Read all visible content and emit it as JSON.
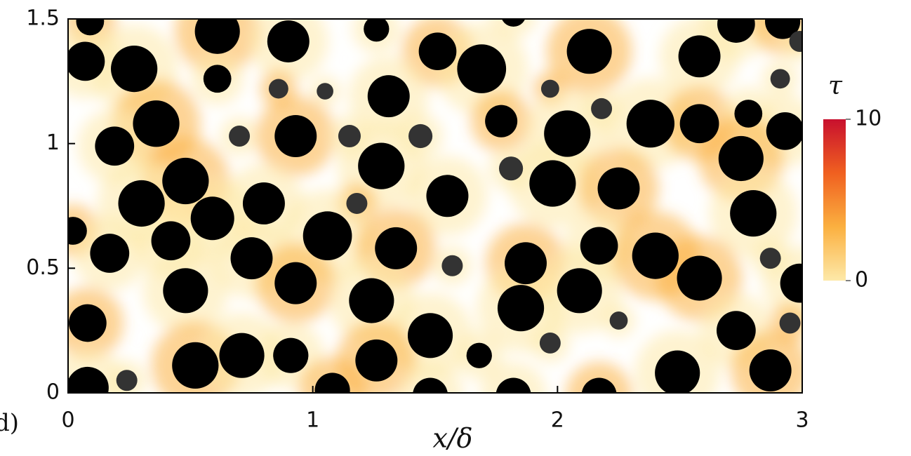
{
  "chart_data": {
    "type": "scatter",
    "panel_label": "d)",
    "x_label": "x/δ",
    "xlim": [
      0,
      3
    ],
    "ylim": [
      0,
      1.5
    ],
    "xticks": [
      0,
      1,
      2,
      3
    ],
    "yticks": [
      0,
      0.5,
      1,
      1.5
    ],
    "color": "#000000",
    "colorbar": {
      "label": "τ",
      "lim": [
        0,
        10
      ],
      "ticks": [
        0,
        10
      ],
      "colors": [
        "#fde9a9",
        "#fbb040",
        "#f06020",
        "#c8102e"
      ]
    },
    "x": [
      0.09,
      0.07,
      0.27,
      0.61,
      0.9,
      1.26,
      1.51,
      1.69,
      1.82,
      2.13,
      2.58,
      2.73,
      2.92,
      2.99,
      0.61,
      0.86,
      1.05,
      1.31,
      1.97,
      2.18,
      2.91,
      0.36,
      0.19,
      0.7,
      0.93,
      1.15,
      1.44,
      1.77,
      2.04,
      2.38,
      2.58,
      2.78,
      2.93,
      2.75,
      1.28,
      1.81,
      0.48,
      0.3,
      0.8,
      1.18,
      1.55,
      1.98,
      2.25,
      0.59,
      1.06,
      0.02,
      0.42,
      0.17,
      1.34,
      2.17,
      2.8,
      2.4,
      0.75,
      1.57,
      1.87,
      2.87,
      0.48,
      0.93,
      1.24,
      2.09,
      2.58,
      2.99,
      1.85,
      0.08,
      2.25,
      2.73,
      2.95,
      1.48,
      1.97,
      0.52,
      0.71,
      0.91,
      1.26,
      1.68,
      2.49,
      2.87,
      0.08,
      0.24,
      1.08,
      1.48,
      1.82,
      2.17
    ],
    "y": [
      1.49,
      1.33,
      1.3,
      1.45,
      1.41,
      1.46,
      1.37,
      1.3,
      1.52,
      1.37,
      1.35,
      1.48,
      1.49,
      1.41,
      1.26,
      1.22,
      1.21,
      1.19,
      1.22,
      1.14,
      1.26,
      1.08,
      0.99,
      1.03,
      1.03,
      1.03,
      1.03,
      1.09,
      1.04,
      1.08,
      1.08,
      1.12,
      1.05,
      0.94,
      0.91,
      0.9,
      0.85,
      0.76,
      0.76,
      0.76,
      0.79,
      0.84,
      0.82,
      0.7,
      0.63,
      0.65,
      0.61,
      0.56,
      0.58,
      0.59,
      0.72,
      0.55,
      0.54,
      0.51,
      0.52,
      0.54,
      0.41,
      0.44,
      0.37,
      0.41,
      0.46,
      0.44,
      0.34,
      0.28,
      0.29,
      0.25,
      0.28,
      0.23,
      0.2,
      0.11,
      0.15,
      0.15,
      0.13,
      0.15,
      0.08,
      0.09,
      0.02,
      0.05,
      0.01,
      -0.01,
      -0.01,
      -0.01
    ],
    "size": [
      0.057,
      0.08,
      0.095,
      0.092,
      0.086,
      0.052,
      0.077,
      0.1,
      0.052,
      0.092,
      0.086,
      0.077,
      0.072,
      0.043,
      0.057,
      0.04,
      0.034,
      0.086,
      0.037,
      0.043,
      0.04,
      0.095,
      0.08,
      0.043,
      0.086,
      0.046,
      0.049,
      0.066,
      0.095,
      0.098,
      0.08,
      0.057,
      0.077,
      0.092,
      0.095,
      0.049,
      0.095,
      0.095,
      0.086,
      0.043,
      0.086,
      0.095,
      0.086,
      0.089,
      0.1,
      0.057,
      0.08,
      0.08,
      0.086,
      0.077,
      0.095,
      0.095,
      0.086,
      0.043,
      0.086,
      0.043,
      0.092,
      0.086,
      0.092,
      0.092,
      0.092,
      0.08,
      0.095,
      0.077,
      0.037,
      0.08,
      0.043,
      0.092,
      0.043,
      0.095,
      0.092,
      0.072,
      0.086,
      0.052,
      0.092,
      0.086,
      0.086,
      0.043,
      0.072,
      0.072,
      0.072,
      0.072
    ]
  }
}
